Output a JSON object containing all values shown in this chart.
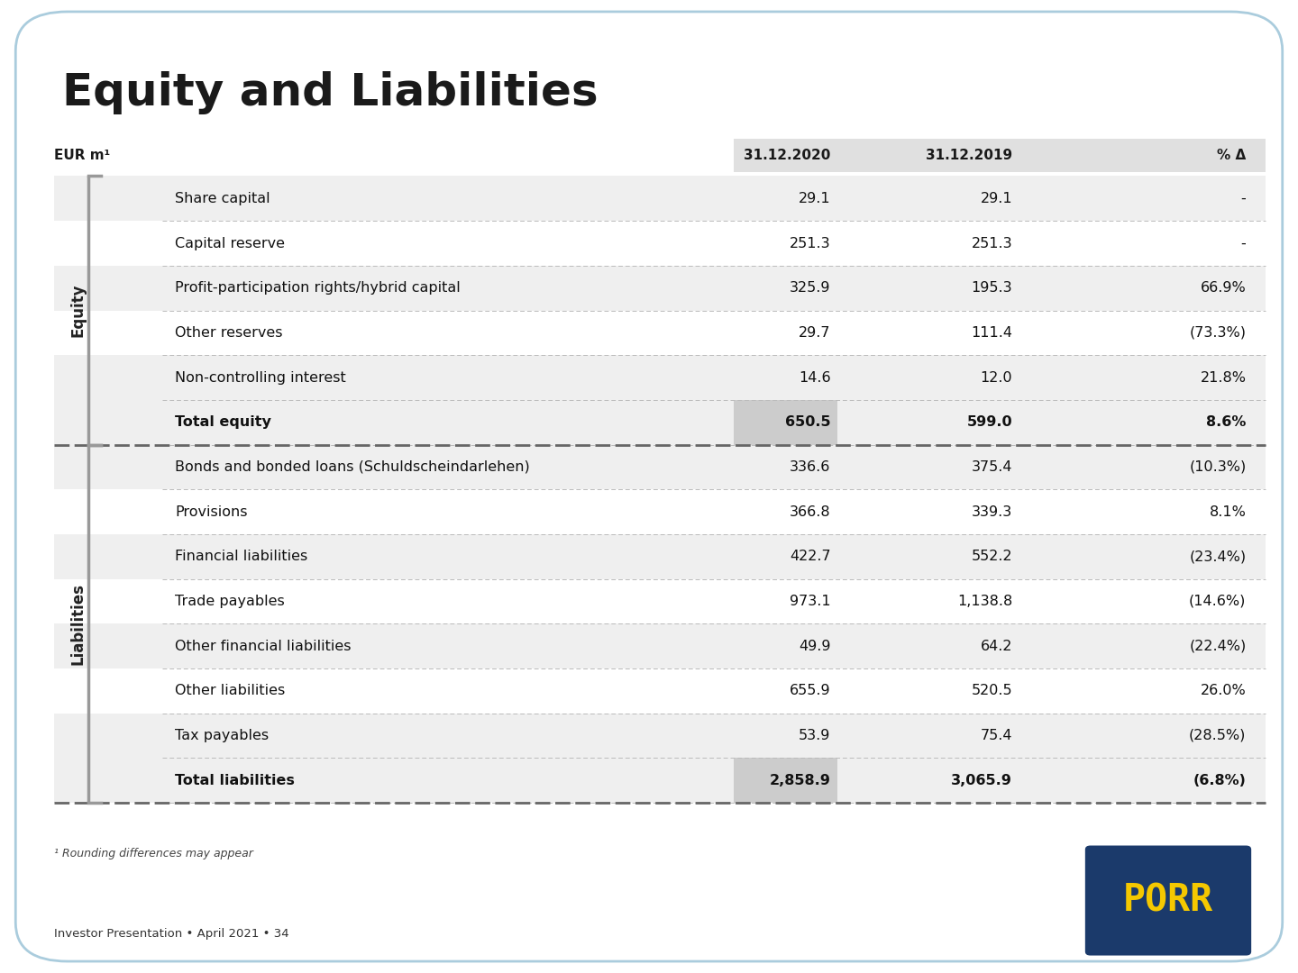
{
  "title": "Equity and Liabilities",
  "subtitle_unit": "EUR m¹",
  "col_headers": [
    "31.12.2020",
    "31.12.2019",
    "% Δ"
  ],
  "equity_rows": [
    {
      "label": "Share capital",
      "v2020": "29.1",
      "v2019": "29.1",
      "delta": "-"
    },
    {
      "label": "Capital reserve",
      "v2020": "251.3",
      "v2019": "251.3",
      "delta": "-"
    },
    {
      "label": "Profit-participation rights/hybrid capital",
      "v2020": "325.9",
      "v2019": "195.3",
      "delta": "66.9%"
    },
    {
      "label": "Other reserves",
      "v2020": "29.7",
      "v2019": "111.4",
      "delta": "(73.3%)"
    },
    {
      "label": "Non-controlling interest",
      "v2020": "14.6",
      "v2019": "12.0",
      "delta": "21.8%"
    }
  ],
  "equity_total": {
    "label": "Total equity",
    "v2020": "650.5",
    "v2019": "599.0",
    "delta": "8.6%"
  },
  "liabilities_rows": [
    {
      "label": "Bonds and bonded loans (Schuldscheindarlehen)",
      "v2020": "336.6",
      "v2019": "375.4",
      "delta": "(10.3%)"
    },
    {
      "label": "Provisions",
      "v2020": "366.8",
      "v2019": "339.3",
      "delta": "8.1%"
    },
    {
      "label": "Financial liabilities",
      "v2020": "422.7",
      "v2019": "552.2",
      "delta": "(23.4%)"
    },
    {
      "label": "Trade payables",
      "v2020": "973.1",
      "v2019": "1,138.8",
      "delta": "(14.6%)"
    },
    {
      "label": "Other financial liabilities",
      "v2020": "49.9",
      "v2019": "64.2",
      "delta": "(22.4%)"
    },
    {
      "label": "Other liabilities",
      "v2020": "655.9",
      "v2019": "520.5",
      "delta": "26.0%"
    },
    {
      "label": "Tax payables",
      "v2020": "53.9",
      "v2019": "75.4",
      "delta": "(28.5%)"
    }
  ],
  "liabilities_total": {
    "label": "Total liabilities",
    "v2020": "2,858.9",
    "v2019": "3,065.9",
    "delta": "(6.8%)"
  },
  "footnote": "¹ Rounding differences may appear",
  "footer": "Investor Presentation • April 2021 • 34",
  "bg_color": "#ffffff",
  "title_color": "#1a1a1a",
  "header_bg": "#e0e0e0",
  "row_bg_light": "#efefef",
  "row_bg_white": "#ffffff",
  "total_highlight_bg": "#cccccc",
  "dashed_color": "#666666",
  "thin_line_color": "#bbbbbb",
  "porr_blue": "#1b3a6b",
  "porr_yellow": "#f5c800",
  "side_bracket_color": "#999999",
  "side_label_color": "#222222"
}
